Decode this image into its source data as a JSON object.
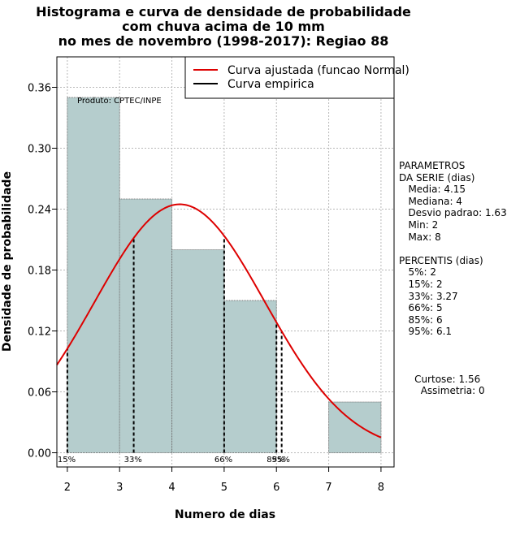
{
  "title_lines": [
    "Histograma e curva de densidade de probabilidade",
    "com chuva acima de 10 mm",
    "no mes de novembro (1998-2017): Regiao 88"
  ],
  "chart_data": {
    "type": "bar",
    "title": "Histograma e curva de densidade de probabilidade com chuva acima de 10 mm no mes de novembro (1998-2017): Regiao 88",
    "xlabel": "Numero de dias",
    "ylabel": "Densidade de probabilidade",
    "xlim": [
      1.8,
      8.25
    ],
    "ylim": [
      -0.014,
      0.39
    ],
    "x_ticks": [
      2,
      3,
      4,
      5,
      6,
      7,
      8
    ],
    "y_ticks": [
      0.0,
      0.06,
      0.12,
      0.18,
      0.24,
      0.3,
      0.36
    ],
    "y_tick_labels": [
      "0.00",
      "0.06",
      "0.12",
      "0.18",
      "0.24",
      "0.30",
      "0.36"
    ],
    "grid": true,
    "bins": [
      {
        "from": 2,
        "to": 3,
        "value": 0.35
      },
      {
        "from": 3,
        "to": 4,
        "value": 0.25
      },
      {
        "from": 4,
        "to": 5,
        "value": 0.2
      },
      {
        "from": 5,
        "to": 6,
        "value": 0.15
      },
      {
        "from": 6,
        "to": 7,
        "value": 0.0
      },
      {
        "from": 7,
        "to": 8,
        "value": 0.05
      }
    ],
    "fitted_curve": {
      "name": "Curva ajustada (funcao Normal)",
      "distribution": "normal",
      "mean": 4.15,
      "sd": 1.63,
      "color": "#dd0000"
    },
    "empirical_curve": {
      "name": "Curva empirica",
      "color": "#000000"
    },
    "percentile_lines": [
      {
        "label": "15%",
        "x": 2
      },
      {
        "label": "33%",
        "x": 3.27
      },
      {
        "label": "66%",
        "x": 5
      },
      {
        "label": "85%",
        "x": 6
      },
      {
        "label": "95%",
        "x": 6.1
      }
    ],
    "annotation": "Produto: CPTEC/INPE",
    "legend_position": "top-right",
    "bar_color": "#b5cdcd"
  },
  "side_panel": {
    "lines": [
      "PARAMETROS",
      "DA SERIE (dias)",
      "   Media: 4.15",
      "   Mediana: 4",
      "   Desvio padrao: 1.63",
      "   Min: 2",
      "   Max: 8",
      "",
      "PERCENTIS (dias)",
      "   5%: 2",
      "   15%: 2",
      "   33%: 3.27",
      "   66%: 5",
      "   85%: 6",
      "   95%: 6.1",
      "",
      "",
      "",
      "     Curtose: 1.56",
      "       Assimetria: 0"
    ]
  }
}
